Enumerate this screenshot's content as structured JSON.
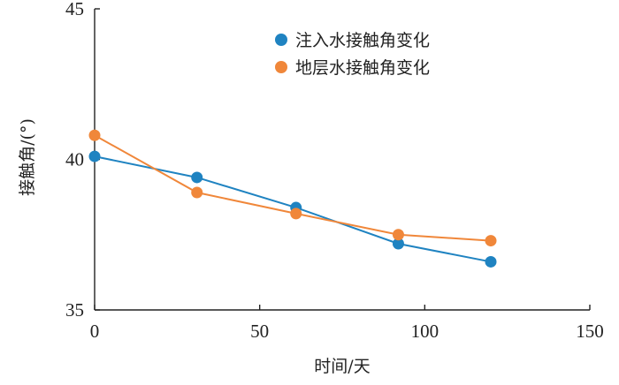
{
  "chart_data": {
    "type": "line",
    "xlabel": "时间/天",
    "ylabel": "接触角/(°)",
    "xlim": [
      0,
      150
    ],
    "ylim": [
      35,
      45
    ],
    "x_ticks": [
      0,
      50,
      100,
      150
    ],
    "y_ticks": [
      35,
      40,
      45
    ],
    "grid": false,
    "legend_position": "top-right",
    "series": [
      {
        "name": "注入水接触角变化",
        "color": "#1f83c1",
        "x": [
          0,
          31,
          61,
          92,
          120
        ],
        "y": [
          40.1,
          39.4,
          38.4,
          37.2,
          36.6
        ]
      },
      {
        "name": "地层水接触角变化",
        "color": "#f0873a",
        "x": [
          0,
          31,
          61,
          92,
          120
        ],
        "y": [
          40.8,
          38.9,
          38.2,
          37.5,
          37.3
        ]
      }
    ]
  }
}
